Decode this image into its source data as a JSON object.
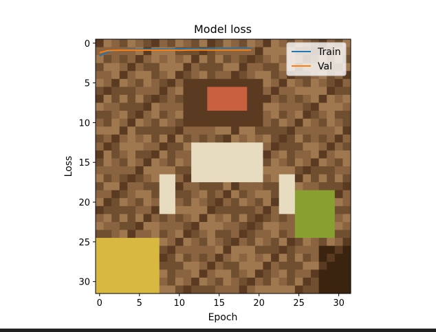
{
  "chart_data": {
    "type": "line",
    "title": "Model loss",
    "xlabel": "Epoch",
    "ylabel": "Loss",
    "xlim": [
      -0.5,
      31.5
    ],
    "ylim": [
      31.5,
      -0.5
    ],
    "y_inverted": true,
    "x_ticks": [
      0,
      5,
      10,
      15,
      20,
      25,
      30
    ],
    "y_ticks": [
      0,
      5,
      10,
      15,
      20,
      25,
      30
    ],
    "legend_position": "top-right",
    "background_image": {
      "description_name": "pixelated-frog-image",
      "palette": [
        "#6f4f2f",
        "#8a6440",
        "#a07850",
        "#5a3a20",
        "#e8dcc0",
        "#c8a070",
        "#d8b840",
        "#88a030",
        "#3a2410",
        "#c86040"
      ]
    },
    "series": [
      {
        "name": "Train",
        "color": "#1f77b4",
        "x": [
          0,
          1,
          2,
          3,
          4,
          5,
          6,
          7,
          8,
          9,
          10,
          11,
          12,
          13,
          14,
          15,
          16,
          17,
          18,
          19
        ],
        "y": [
          1.6,
          1.1,
          0.9,
          0.85,
          0.8,
          0.78,
          0.76,
          0.75,
          0.74,
          0.73,
          0.72,
          0.71,
          0.7,
          0.69,
          0.68,
          0.67,
          0.66,
          0.65,
          0.64,
          0.63
        ]
      },
      {
        "name": "Val",
        "color": "#ff7f0e",
        "x": [
          0,
          1,
          2,
          3,
          4,
          5,
          6,
          7,
          8,
          9,
          10,
          11,
          12,
          13,
          14,
          15,
          16,
          17,
          18,
          19
        ],
        "y": [
          1.2,
          0.95,
          0.9,
          0.88,
          0.87,
          0.87,
          0.88,
          0.88,
          0.87,
          0.86,
          0.9,
          0.87,
          0.86,
          0.86,
          0.87,
          0.86,
          0.86,
          0.86,
          0.86,
          0.86
        ]
      }
    ]
  }
}
